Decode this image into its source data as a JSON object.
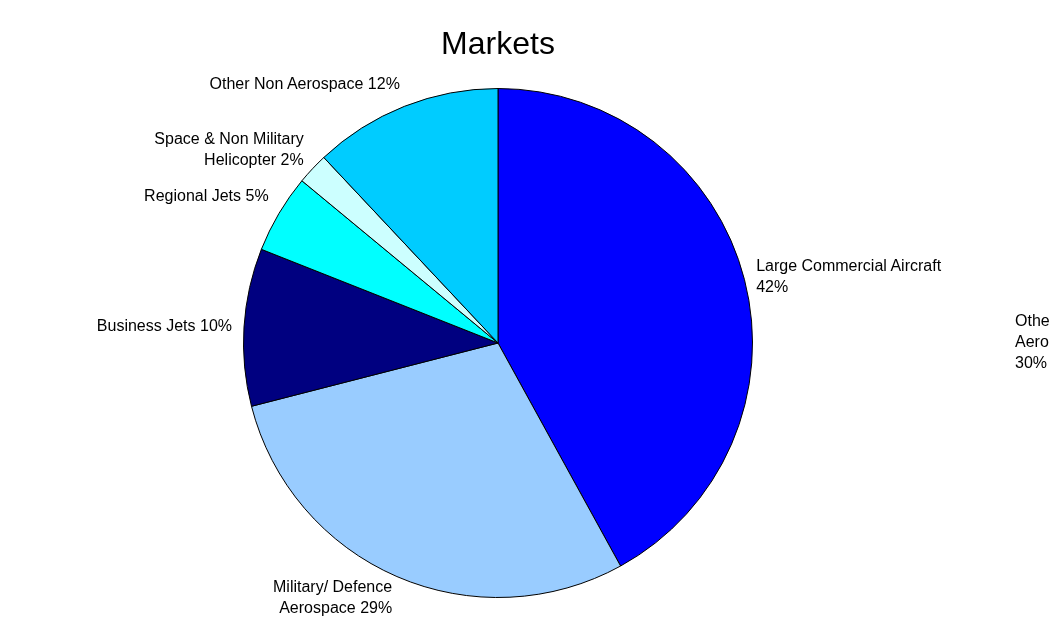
{
  "chart_data": {
    "type": "pie",
    "title": "Markets",
    "categories": [
      "Large Commercial Aircraft",
      "Military/ Defence Aerospace",
      "Business Jets",
      "Regional Jets",
      "Space & Non Military Helicopter",
      "Other Non Aerospace"
    ],
    "values": [
      42,
      29,
      10,
      5,
      2,
      12
    ],
    "colors": [
      "#0000ff",
      "#99ccff",
      "#000080",
      "#00ffff",
      "#ccffff",
      "#00ccff"
    ],
    "value_labels": [
      "42%",
      "29%",
      "10%",
      "5%",
      "2%",
      "12%"
    ],
    "legend": false,
    "annotations": [
      "Othe\nAero\n30%"
    ]
  }
}
